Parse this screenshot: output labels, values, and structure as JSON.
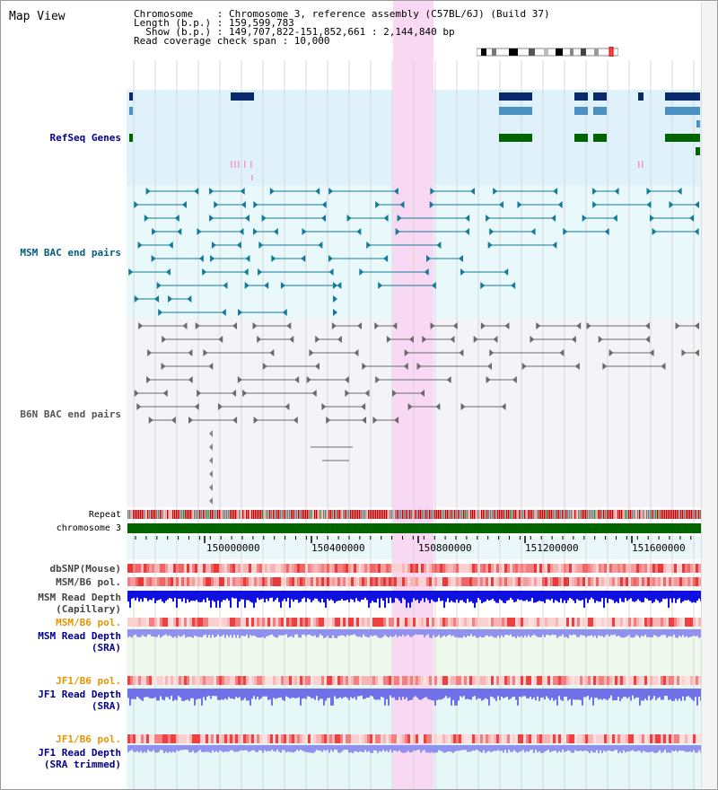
{
  "map_view": {
    "title": "Map View",
    "info_lines": [
      "Chromosome    : Chromosome 3, reference assembly (C57BL/6J) (Build 37)",
      "Length (b.p.) : 159,599,783",
      "  Show (b.p.) : 149,707,822-151,852,661 : 2,144,840 bp",
      "Read coverage check span : 10,000"
    ]
  },
  "tracks": {
    "refseq": {
      "label": "RefSeq Genes",
      "color": "#00008b"
    },
    "msm_bac": {
      "label": "MSM BAC end pairs",
      "color": "#005f7f"
    },
    "b6n_bac": {
      "label": "B6N BAC end pairs",
      "color": "#555555"
    },
    "repeat": {
      "label": "Repeat"
    },
    "chromosome": {
      "label": "chromosome 3"
    },
    "dbsnp": {
      "label": "dbSNP(Mouse)",
      "color": "#444444"
    },
    "msm_b6_pol_1": {
      "label": "MSM/B6 pol.",
      "color": "#444444"
    },
    "msm_depth_cap": {
      "label": "MSM Read Depth\n(Capillary)",
      "color": "#444444"
    },
    "msm_b6_pol_2": {
      "label": "MSM/B6 pol.",
      "color": "#e69500"
    },
    "msm_depth_sra": {
      "label": "MSM Read Depth\n(SRA)",
      "color": "#00008b"
    },
    "jf1_b6_pol_1": {
      "label": "JF1/B6 pol.",
      "color": "#e69500"
    },
    "jf1_depth_sra": {
      "label": "JF1 Read Depth\n(SRA)",
      "color": "#00008b"
    },
    "jf1_b6_pol_2": {
      "label": "JF1/B6 pol.",
      "color": "#e69500"
    },
    "jf1_depth_trim": {
      "label": "JF1 Read Depth\n(SRA trimmed)",
      "color": "#00008b"
    }
  },
  "axis": {
    "ticks": [
      "150000000",
      "150400000",
      "150800000",
      "151200000",
      "151600000"
    ]
  },
  "colors": {
    "refseq_bg": "#dff1fa",
    "msm_bg": "#e8f8fb",
    "b6n_bg": "#f4f4f8",
    "highlight": "#f9d8f3",
    "chrom_green": "#006400",
    "sra_bg": "#eef8ec",
    "jf1_bg": "#e6f7f7"
  }
}
